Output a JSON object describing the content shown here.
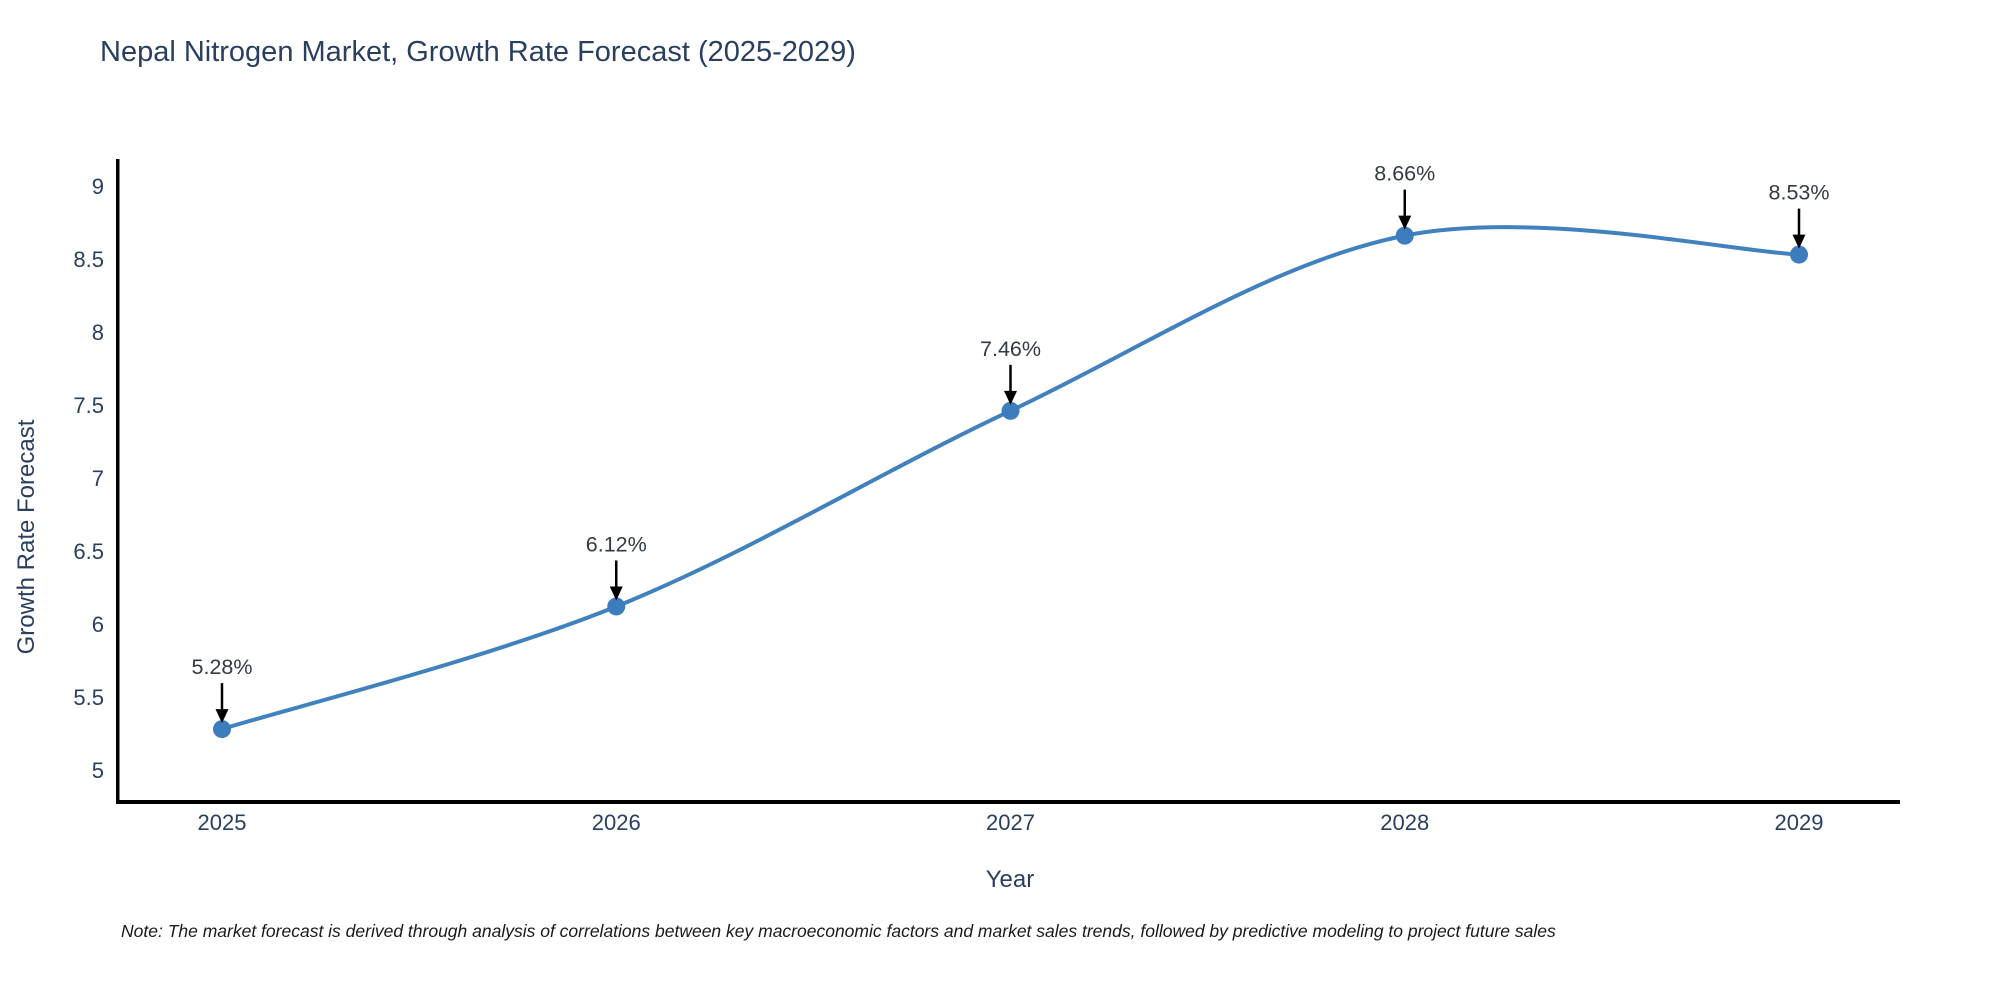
{
  "title": "Nepal Nitrogen Market, Growth Rate Forecast (2025-2029)",
  "note": "Note: The market forecast is derived through analysis of correlations between key macroeconomic factors and market sales trends, followed by predictive modeling to project future sales",
  "chart_data": {
    "type": "line",
    "title": "Nepal Nitrogen Market, Growth Rate Forecast (2025-2029)",
    "xlabel": "Year",
    "ylabel": "Growth Rate Forecast",
    "categories": [
      "2025",
      "2026",
      "2027",
      "2028",
      "2029"
    ],
    "values": [
      5.28,
      6.12,
      7.46,
      8.66,
      8.53
    ],
    "point_labels": [
      "5.28%",
      "6.12%",
      "7.46%",
      "8.66%",
      "8.53%"
    ],
    "yticks": [
      5,
      5.5,
      6,
      6.5,
      7,
      7.5,
      8,
      8.5,
      9
    ],
    "ylim": [
      4.78,
      9.2
    ],
    "grid": false,
    "legend": "none",
    "smooth": true,
    "annotations": "value labels with down arrows above each point"
  },
  "colors": {
    "line": "#4181bd",
    "marker": "#3d7dbd",
    "axis_line": "#000000",
    "tick_label": "#2a3f5f",
    "axis_title": "#2a3f5f",
    "annotation_text": "#333a45",
    "annotation_arrow": "#000000",
    "background": "#ffffff"
  }
}
